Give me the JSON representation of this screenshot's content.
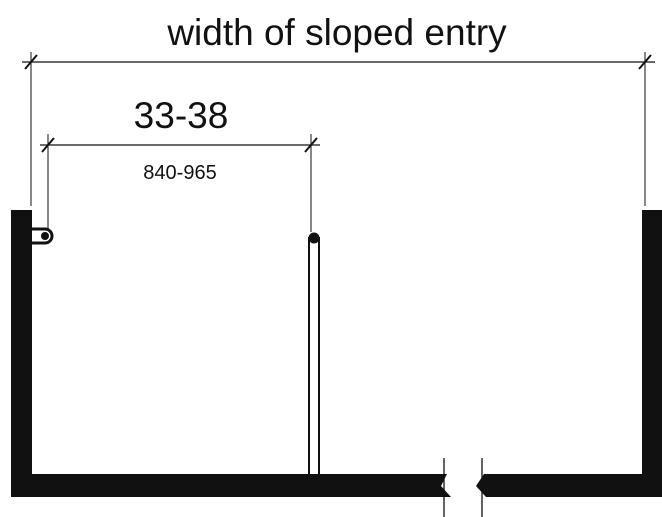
{
  "dimensions": {
    "overall_label": "width of sloped entry",
    "inch_range": "33-38",
    "mm_range": "840-965"
  },
  "colors": {
    "ink": "#111111",
    "background": "#ffffff"
  }
}
